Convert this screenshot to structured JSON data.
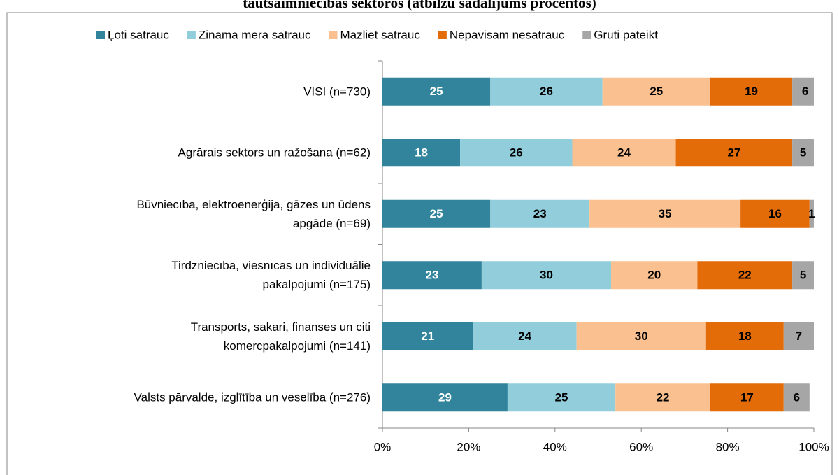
{
  "chart_data": {
    "type": "stacked-bar-horizontal",
    "title": "tautsaimniecības sektoros (atbilžu sadalījums procentos)",
    "categories": [
      "VISI (n=730)",
      "Agrārais sektors un ražošana (n=62)",
      "Būvniecība, elektroenerģija, gāzes un ūdens\napgāde (n=69)",
      "Tirdzniecība, viesnīcas un individuālie\npakalpojumi (n=175)",
      "Transports, sakari, finanses un citi\nkomercpakalpojumi (n=141)",
      "Valsts pārvalde, izglītība un veselība (n=276)"
    ],
    "series": [
      {
        "name": "Ļoti satrauc",
        "color": "#31849b",
        "label_color": "#ffffff",
        "values": [
          25,
          18,
          25,
          23,
          21,
          29
        ]
      },
      {
        "name": "Zināmā mērā satrauc",
        "color": "#92cddc",
        "label_color": "#000000",
        "values": [
          26,
          26,
          23,
          30,
          24,
          25
        ]
      },
      {
        "name": "Mazliet satrauc",
        "color": "#fac090",
        "label_color": "#000000",
        "values": [
          25,
          24,
          35,
          20,
          30,
          22
        ]
      },
      {
        "name": "Nepavisam nesatrauc",
        "color": "#e36c09",
        "label_color": "#000000",
        "values": [
          19,
          27,
          16,
          22,
          18,
          17
        ]
      },
      {
        "name": "Grūti pateikt",
        "color": "#a6a6a6",
        "label_color": "#000000",
        "values": [
          6,
          5,
          1,
          5,
          7,
          6
        ]
      }
    ],
    "xlim": [
      0,
      100
    ],
    "xticks": [
      {
        "value": 0,
        "label": "0%"
      },
      {
        "value": 20,
        "label": "20%"
      },
      {
        "value": 40,
        "label": "40%"
      },
      {
        "value": 60,
        "label": "60%"
      },
      {
        "value": 80,
        "label": "80%"
      },
      {
        "value": 100,
        "label": "100%"
      }
    ],
    "legend": "top"
  }
}
